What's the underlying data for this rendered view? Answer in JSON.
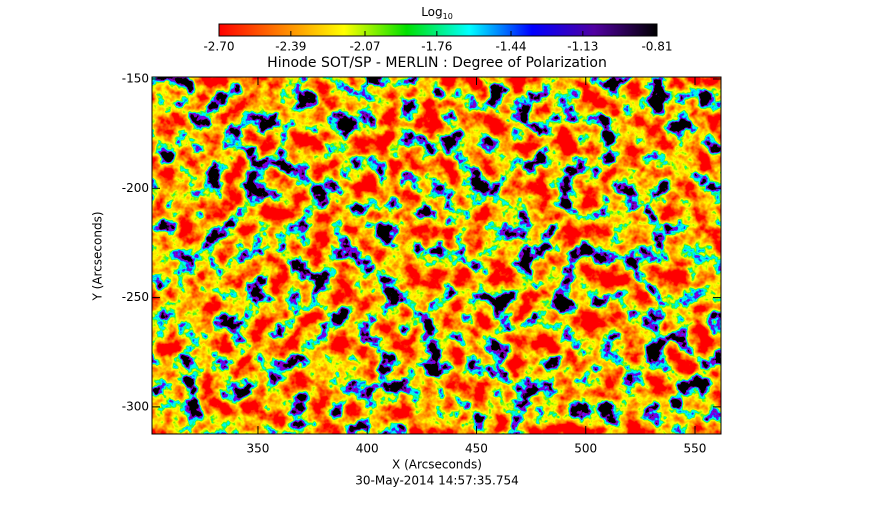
{
  "chart_data": {
    "type": "heatmap",
    "title": "Hinode SOT/SP - MERLIN : Degree of Polarization",
    "subtitle": "30-May-2014 14:57:35.754",
    "x_label": "X (Arcseconds)",
    "y_label": "Y (Arcseconds)",
    "xlim": [
      301.5,
      561.9
    ],
    "xticks": [
      350,
      400,
      450,
      500,
      550
    ],
    "ylim": [
      -312.4,
      -149.1
    ],
    "yticks": [
      -300,
      -250,
      -200,
      -150
    ],
    "colorbar": {
      "label": "Log",
      "label_sub": "10",
      "lim": [
        -2.7,
        -0.81
      ],
      "ticks": [
        {
          "value": -2.7,
          "label": "-2.70"
        },
        {
          "value": -2.39,
          "label": "-2.39"
        },
        {
          "value": -2.07,
          "label": "-2.07"
        },
        {
          "value": -1.76,
          "label": "-1.76"
        },
        {
          "value": -1.44,
          "label": "-1.44"
        },
        {
          "value": -1.13,
          "label": "-1.13"
        },
        {
          "value": -0.81,
          "label": "-0.81"
        }
      ],
      "colormap": [
        "#ff0000",
        "#ff8000",
        "#ffff00",
        "#00e000",
        "#00ffff",
        "#0000ff",
        "#5000a0",
        "#000000"
      ]
    }
  }
}
